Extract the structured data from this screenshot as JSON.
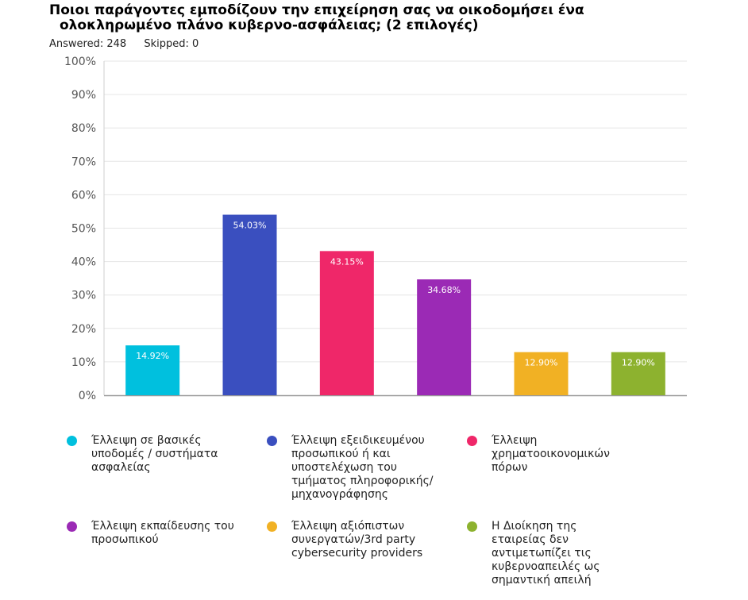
{
  "title": {
    "line1": "Ποιοι παράγοντες εμποδίζουν την επιχείρηση σας να οικοδομήσει ένα",
    "line2": "ολοκληρωμένο πλάνο κυβερνο-ασφάλειας; (2 επιλογές)"
  },
  "meta": {
    "answered": "Answered: 248",
    "skipped": "Skipped: 0"
  },
  "chart_data": {
    "type": "bar",
    "title": "Ποιοι παράγοντες εμποδίζουν την επιχείρηση σας να οικοδομήσει ένα ολοκληρωμένο πλάνο κυβερνο-ασφάλειας; (2 επιλογές)",
    "categories": [
      "Έλλειψη σε βασικές υποδομές / συστήματα ασφαλείας",
      "Έλλειψη εξειδικευμένου προσωπικού ή και υποστελέχωση του τμήματος πληροφορικής/ μηχανογράφησης",
      "Έλλειψη χρηματοοικονομικών πόρων",
      "Έλλειψη εκπαίδευσης του προσωπικού",
      "Έλλειψη αξιόπιστων συνεργατών/3rd party cybersecurity providers",
      "Η Διοίκηση της εταιρείας δεν αντιμετωπίζει τις κυβερνοαπειλές ως σημαντική απειλή"
    ],
    "values": [
      14.92,
      54.03,
      43.15,
      34.68,
      12.9,
      12.9
    ],
    "data_labels": [
      "14.92%",
      "54.03%",
      "43.15%",
      "34.68%",
      "12.90%",
      "12.90%"
    ],
    "colors": [
      "#00c0de",
      "#3a4fbf",
      "#ef2769",
      "#9b2ab5",
      "#f1b124",
      "#8db22f"
    ],
    "ylim": [
      0,
      100
    ],
    "y_ticks": [
      "0%",
      "10%",
      "20%",
      "30%",
      "40%",
      "50%",
      "60%",
      "70%",
      "80%",
      "90%",
      "100%"
    ],
    "xlabel": "",
    "ylabel": "",
    "grid": true,
    "legend_position": "bottom"
  }
}
